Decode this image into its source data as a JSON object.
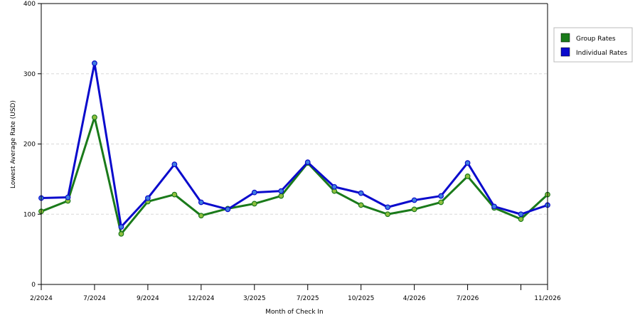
{
  "chart_data": {
    "type": "line",
    "xlabel": "Month of Check In",
    "ylabel": "Lowest Average Rate (USD)",
    "ylim": [
      0,
      400
    ],
    "y_ticks": [
      "0",
      "100",
      "200",
      "300",
      "400"
    ],
    "y_tick_values": [
      0,
      100,
      200,
      300,
      400
    ],
    "grid": "horizontal dashed",
    "legend_position": "right",
    "point_count": 20,
    "x_tick_labels": [
      {
        "index": 0,
        "label": "2/2024"
      },
      {
        "index": 2,
        "label": "7/2024"
      },
      {
        "index": 4,
        "label": "9/2024"
      },
      {
        "index": 6,
        "label": "12/2024"
      },
      {
        "index": 8,
        "label": "3/2025"
      },
      {
        "index": 10,
        "label": "7/2025"
      },
      {
        "index": 12,
        "label": "10/2025"
      },
      {
        "index": 14,
        "label": "4/2026"
      },
      {
        "index": 16,
        "label": "7/2026"
      },
      {
        "index": 18,
        "label": ""
      },
      {
        "index": 19,
        "label": "11/2026"
      }
    ],
    "series": [
      {
        "name": "Group Rates",
        "color": "#1a7a1a",
        "marker_fill": "#8fbf3f",
        "values": [
          104,
          119,
          238,
          72,
          118,
          128,
          98,
          108,
          115,
          126,
          173,
          133,
          113,
          100,
          107,
          117,
          154,
          109,
          93,
          128
        ]
      },
      {
        "name": "Individual Rates",
        "color": "#0a0acc",
        "marker_fill": "#3f7fdf",
        "values": [
          123,
          124,
          315,
          82,
          123,
          171,
          117,
          107,
          131,
          133,
          174,
          139,
          130,
          110,
          120,
          126,
          173,
          111,
          100,
          113
        ]
      }
    ]
  }
}
